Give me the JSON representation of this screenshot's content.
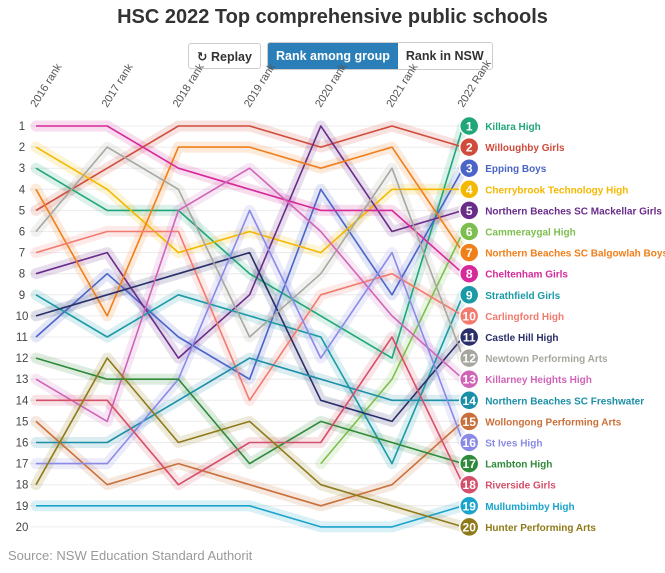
{
  "header": {
    "title": "HSC 2022 Top comprehensive public schools",
    "replay_icon": "replay-icon",
    "replay_label": "Replay",
    "tab_group_label": "Rank among group",
    "tab_nsw_label": "Rank in NSW"
  },
  "source": "Source: NSW Education Standard  Authorit",
  "chart_data": {
    "type": "line",
    "title": "HSC 2022 Top comprehensive public schools",
    "x": [
      "2016 rank",
      "2017 rank",
      "2018 rank",
      "2019 rank",
      "2020 rank",
      "2021 rank",
      "2022 Rank"
    ],
    "ylim": [
      20,
      1
    ],
    "yticks": [
      1,
      2,
      3,
      4,
      5,
      6,
      7,
      8,
      9,
      10,
      11,
      12,
      13,
      14,
      15,
      16,
      17,
      18,
      19,
      20
    ],
    "grid": true,
    "series": [
      {
        "name": "Killara High",
        "color": "#21a67a",
        "values": [
          3,
          5,
          5,
          8,
          10,
          12,
          1
        ]
      },
      {
        "name": "Willoughby Girls",
        "color": "#d14b3c",
        "values": [
          5,
          3,
          1,
          1,
          2,
          1,
          2
        ]
      },
      {
        "name": "Epping Boys",
        "color": "#4a64c8",
        "values": [
          11,
          8,
          11,
          13,
          4,
          9,
          3
        ]
      },
      {
        "name": "Cherrybrook Technology High",
        "color": "#f5b800",
        "values": [
          2,
          4,
          7,
          6,
          7,
          4,
          4
        ]
      },
      {
        "name": "Northern Beaches SC Mackellar Girls",
        "color": "#6a2c8a",
        "values": [
          8,
          7,
          12,
          9,
          1,
          6,
          5
        ]
      },
      {
        "name": "Cammeraygal High",
        "color": "#7dbf4f",
        "values": [
          null,
          null,
          null,
          null,
          17,
          13,
          6
        ]
      },
      {
        "name": "Northern Beaches SC Balgowlah Boys",
        "color": "#f07f1a",
        "values": [
          4,
          10,
          2,
          2,
          3,
          2,
          7
        ]
      },
      {
        "name": "Cheltenham Girls",
        "color": "#d6299a",
        "values": [
          1,
          1,
          3,
          4,
          5,
          5,
          8
        ]
      },
      {
        "name": "Strathfield Girls",
        "color": "#1a9aa6",
        "values": [
          9,
          11,
          9,
          10,
          11,
          17,
          9
        ]
      },
      {
        "name": "Carlingford High",
        "color": "#f27a6e",
        "values": [
          7,
          6,
          6,
          14,
          9,
          8,
          10
        ]
      },
      {
        "name": "Castle Hill High",
        "color": "#2a2f6a",
        "values": [
          10,
          9,
          8,
          7,
          14,
          15,
          11
        ]
      },
      {
        "name": "Newtown Performing Arts",
        "color": "#a7a7a0",
        "values": [
          6,
          2,
          4,
          11,
          8,
          3,
          12
        ]
      },
      {
        "name": "Killarney Heights High",
        "color": "#d065b8",
        "values": [
          13,
          15,
          5,
          3,
          6,
          10,
          13
        ]
      },
      {
        "name": "Northern Beaches SC Freshwater",
        "color": "#1c8fa8",
        "values": [
          16,
          16,
          14,
          12,
          13,
          14,
          14
        ]
      },
      {
        "name": "Wollongong Performing Arts",
        "color": "#c9703a",
        "values": [
          15,
          18,
          17,
          18,
          19,
          18,
          15
        ]
      },
      {
        "name": "St Ives High",
        "color": "#8a8ae6",
        "values": [
          17,
          17,
          13,
          5,
          12,
          7,
          16
        ]
      },
      {
        "name": "Lambton High",
        "color": "#2f8a3a",
        "values": [
          12,
          13,
          13,
          17,
          15,
          16,
          17
        ]
      },
      {
        "name": "Riverside Girls",
        "color": "#d64f6a",
        "values": [
          14,
          14,
          18,
          16,
          16,
          11,
          18
        ]
      },
      {
        "name": "Mullumbimby High",
        "color": "#1aa4cc",
        "values": [
          19,
          19,
          19,
          19,
          20,
          20,
          19
        ]
      },
      {
        "name": "Hunter Performing Arts",
        "color": "#8f7a1a",
        "values": [
          18,
          12,
          16,
          15,
          18,
          19,
          20
        ]
      }
    ]
  }
}
